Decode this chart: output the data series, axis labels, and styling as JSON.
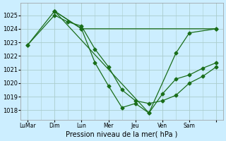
{
  "background_color": "#cceeff",
  "grid_color": "#aacccc",
  "line_color": "#1a6e1a",
  "xlabel": "Pression niveau de la mer( hPa )",
  "ylim": [
    1017.3,
    1025.9
  ],
  "yticks": [
    1018,
    1019,
    1020,
    1021,
    1022,
    1023,
    1024,
    1025
  ],
  "day_tick_positions": [
    0,
    2,
    4,
    6,
    8,
    10,
    12,
    14
  ],
  "day_tick_labels": [
    "LuMar",
    "Dim",
    "Lun",
    "Mer",
    "Jeu",
    "Ven",
    "Sam",
    ""
  ],
  "xlim": [
    -0.5,
    14.5
  ],
  "series1_x": [
    0,
    2,
    3,
    4,
    5,
    6,
    7,
    8,
    9,
    10,
    11,
    12,
    13,
    14
  ],
  "series1_y": [
    1022.8,
    1025.0,
    1024.5,
    1024.2,
    1022.5,
    1021.2,
    1019.5,
    1018.7,
    1018.5,
    1018.7,
    1019.1,
    1020.0,
    1020.5,
    1021.2
  ],
  "series2_x": [
    0,
    2,
    4,
    5,
    6,
    7,
    8,
    9,
    10,
    11,
    12,
    13,
    14
  ],
  "series2_y": [
    1022.8,
    1025.3,
    1024.0,
    1021.5,
    1019.8,
    1018.2,
    1018.5,
    1017.8,
    1019.2,
    1020.3,
    1020.6,
    1021.1,
    1021.5
  ],
  "series3_x": [
    2,
    4,
    14
  ],
  "series3_y": [
    1025.3,
    1024.0,
    1024.0
  ],
  "series4_x": [
    2,
    9,
    11,
    12,
    14
  ],
  "series4_y": [
    1025.3,
    1017.8,
    1022.2,
    1023.7,
    1024.0
  ]
}
